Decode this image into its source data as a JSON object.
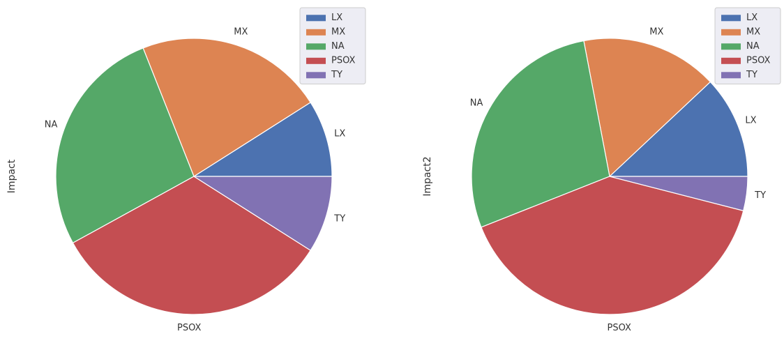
{
  "chart_data": [
    {
      "type": "pie",
      "ylabel": "Impact",
      "categories": [
        "LX",
        "MX",
        "NA",
        "PSOX",
        "TY"
      ],
      "values": [
        9,
        22,
        27,
        33,
        9
      ],
      "legend": {
        "entries": [
          "LX",
          "MX",
          "NA",
          "PSOX",
          "TY"
        ],
        "placement": "top-right"
      },
      "start_angle": 0,
      "direction": "counterclockwise"
    },
    {
      "type": "pie",
      "ylabel": "Impact2",
      "categories": [
        "LX",
        "MX",
        "NA",
        "PSOX",
        "TY"
      ],
      "values": [
        12,
        16,
        28,
        40,
        4
      ],
      "legend": {
        "entries": [
          "LX",
          "MX",
          "NA",
          "PSOX",
          "TY"
        ],
        "placement": "top-right"
      },
      "start_angle": 0,
      "direction": "counterclockwise"
    }
  ],
  "colors": {
    "LX": "#4c72b0",
    "MX": "#dd8452",
    "NA": "#55a868",
    "PSOX": "#c44e52",
    "TY": "#8172b3",
    "legend_background": "#eaeaf2",
    "legend_border": "#cccccc",
    "wedge_edge": "#ffffff"
  }
}
